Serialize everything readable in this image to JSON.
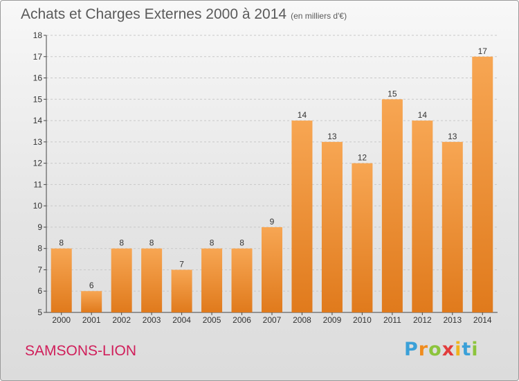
{
  "title": "Achats et Charges Externes 2000 à 2014",
  "subtitle": "(en milliers d'€)",
  "commune": "SAMSONS-LION",
  "brand": {
    "text": "Proxiti",
    "letters": [
      {
        "ch": "P",
        "color": "#3aa0d8"
      },
      {
        "ch": "r",
        "color": "#f08c1e"
      },
      {
        "ch": "o",
        "color": "#8cc43c"
      },
      {
        "ch": "x",
        "color": "#e23c3c"
      },
      {
        "ch": "i",
        "color": "#f0b41e"
      },
      {
        "ch": "t",
        "color": "#3aa0d8"
      },
      {
        "ch": "i",
        "color": "#8cc43c"
      }
    ]
  },
  "colors": {
    "bar_light": "#f7a653",
    "bar_dark": "#e07a1c",
    "axis": "#444444",
    "grid": "#c8c8c8",
    "text": "#333333"
  },
  "chart_data": {
    "type": "bar",
    "categories": [
      "2000",
      "2001",
      "2002",
      "2003",
      "2004",
      "2005",
      "2006",
      "2007",
      "2008",
      "2009",
      "2010",
      "2011",
      "2012",
      "2013",
      "2014"
    ],
    "values": [
      8,
      6,
      8,
      8,
      7,
      8,
      8,
      9,
      14,
      13,
      12,
      15,
      14,
      13,
      17
    ],
    "ylim": [
      5,
      18
    ],
    "yticks": [
      5,
      6,
      7,
      8,
      9,
      10,
      11,
      12,
      13,
      14,
      15,
      16,
      17,
      18
    ],
    "grid": true,
    "data_labels": true
  }
}
